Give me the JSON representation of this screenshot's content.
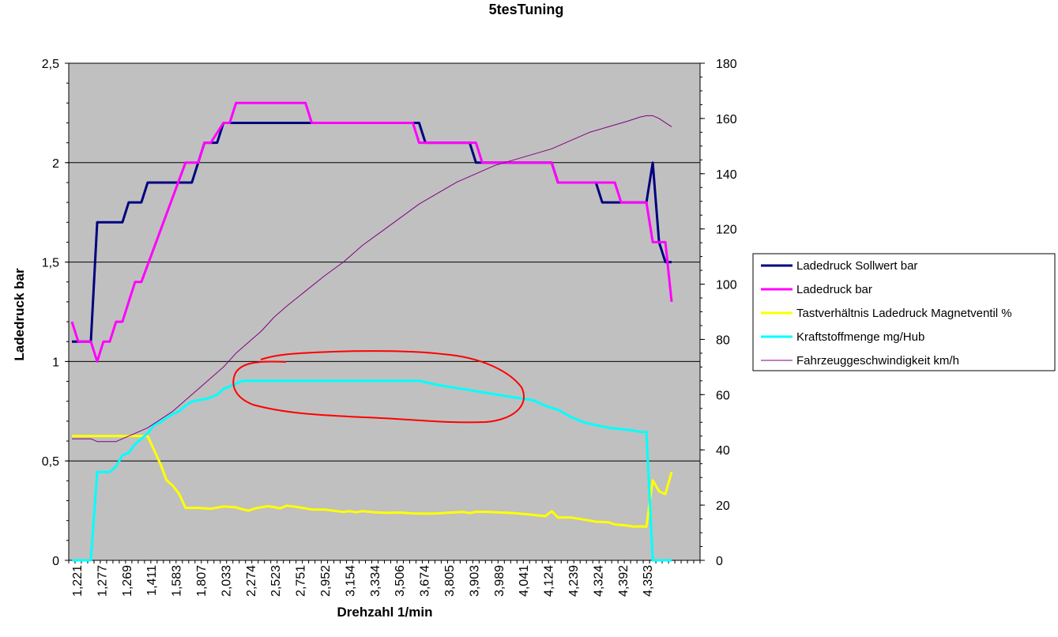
{
  "chart_data": {
    "type": "line",
    "title": "5tesTuning",
    "xlabel": "Drehzahl 1/min",
    "ylabel": "Ladedruck bar",
    "y2label": "",
    "ylim": [
      0,
      2.5
    ],
    "y2lim": [
      0,
      180
    ],
    "yticks": [
      "0",
      "0,5",
      "1",
      "1,5",
      "2",
      "2,5"
    ],
    "y2ticks": [
      "0",
      "20",
      "40",
      "60",
      "80",
      "100",
      "120",
      "140",
      "160",
      "180"
    ],
    "x_tick_labels": [
      "1,221",
      "1,277",
      "1,269",
      "1,411",
      "1,583",
      "1,807",
      "2,033",
      "2,274",
      "2,523",
      "2,751",
      "2,952",
      "3,154",
      "3,334",
      "3,506",
      "3,674",
      "3,805",
      "3,903",
      "3,989",
      "4,041",
      "4,124",
      "4,239",
      "4,324",
      "4,392",
      "4,353"
    ],
    "n_points": 100,
    "grid": "horizontal",
    "background": "#c0c0c0",
    "legend_position": "right",
    "annotation": "red hand-drawn ellipse",
    "series": [
      {
        "name": "Ladedruck Sollwert bar",
        "axis": "left",
        "color": "#000080",
        "points": [
          [
            0,
            1.1
          ],
          [
            3,
            1.1
          ],
          [
            4,
            1.7
          ],
          [
            8,
            1.7
          ],
          [
            9,
            1.8
          ],
          [
            11,
            1.8
          ],
          [
            12,
            1.9
          ],
          [
            19,
            1.9
          ],
          [
            21,
            2.1
          ],
          [
            23,
            2.1
          ],
          [
            24,
            2.2
          ],
          [
            38,
            2.2
          ],
          [
            39,
            2.2
          ],
          [
            55,
            2.2
          ],
          [
            56,
            2.1
          ],
          [
            63,
            2.1
          ],
          [
            64,
            2.0
          ],
          [
            67,
            2.0
          ],
          [
            68,
            2.0
          ],
          [
            76,
            2.0
          ],
          [
            77,
            1.9
          ],
          [
            83,
            1.9
          ],
          [
            84,
            1.8
          ],
          [
            88,
            1.8
          ],
          [
            91,
            1.8
          ],
          [
            92,
            2.0
          ],
          [
            93,
            1.6
          ],
          [
            94,
            1.5
          ],
          [
            95,
            1.5
          ]
        ]
      },
      {
        "name": "Ladedruck bar",
        "axis": "left",
        "color": "#ff00ff",
        "points": [
          [
            0,
            1.2
          ],
          [
            1,
            1.1
          ],
          [
            3,
            1.1
          ],
          [
            4,
            1.0
          ],
          [
            5,
            1.1
          ],
          [
            6,
            1.1
          ],
          [
            7,
            1.2
          ],
          [
            8,
            1.2
          ],
          [
            10,
            1.4
          ],
          [
            11,
            1.4
          ],
          [
            18,
            2.0
          ],
          [
            20,
            2.0
          ],
          [
            21,
            2.1
          ],
          [
            22,
            2.1
          ],
          [
            24,
            2.2
          ],
          [
            25,
            2.2
          ],
          [
            26,
            2.3
          ],
          [
            37,
            2.3
          ],
          [
            38,
            2.2
          ],
          [
            54,
            2.2
          ],
          [
            55,
            2.1
          ],
          [
            64,
            2.1
          ],
          [
            65,
            2.0
          ],
          [
            76,
            2.0
          ],
          [
            77,
            1.9
          ],
          [
            86,
            1.9
          ],
          [
            87,
            1.8
          ],
          [
            91,
            1.8
          ],
          [
            92,
            1.6
          ],
          [
            94,
            1.6
          ],
          [
            95,
            1.3
          ]
        ]
      },
      {
        "name": "Tastverhältnis Ladedruck Magnetventil %",
        "axis": "right",
        "color": "#ffff00",
        "points": [
          [
            0,
            45
          ],
          [
            11,
            45
          ],
          [
            12,
            45
          ],
          [
            13,
            40
          ],
          [
            14,
            35
          ],
          [
            15,
            29
          ],
          [
            16,
            27
          ],
          [
            17,
            24
          ],
          [
            18,
            19
          ],
          [
            20,
            19
          ],
          [
            22,
            18.7
          ],
          [
            24,
            19.5
          ],
          [
            26,
            19.2
          ],
          [
            27,
            18.5
          ],
          [
            28,
            18
          ],
          [
            29,
            18.8
          ],
          [
            30,
            19.2
          ],
          [
            31,
            19.6
          ],
          [
            32,
            19.3
          ],
          [
            33,
            18.8
          ],
          [
            34,
            19.8
          ],
          [
            35,
            19.5
          ],
          [
            36,
            19.2
          ],
          [
            37,
            18.8
          ],
          [
            38,
            18.4
          ],
          [
            40,
            18.4
          ],
          [
            42,
            17.8
          ],
          [
            43,
            17.5
          ],
          [
            44,
            17.8
          ],
          [
            45,
            17.4
          ],
          [
            46,
            17.8
          ],
          [
            48,
            17.4
          ],
          [
            50,
            17.2
          ],
          [
            52,
            17.3
          ],
          [
            54,
            17
          ],
          [
            56,
            16.9
          ],
          [
            58,
            17
          ],
          [
            60,
            17.3
          ],
          [
            62,
            17.5
          ],
          [
            63,
            17.1
          ],
          [
            64,
            17.6
          ],
          [
            66,
            17.5
          ],
          [
            68,
            17.3
          ],
          [
            70,
            17.1
          ],
          [
            72,
            16.7
          ],
          [
            74,
            16.2
          ],
          [
            75,
            16
          ],
          [
            76,
            17.8
          ],
          [
            77,
            15.5
          ],
          [
            79,
            15.5
          ],
          [
            81,
            14.8
          ],
          [
            83,
            14
          ],
          [
            85,
            13.8
          ],
          [
            86,
            13
          ],
          [
            88,
            12.6
          ],
          [
            89,
            12.2
          ],
          [
            90,
            12.3
          ],
          [
            91,
            12.2
          ],
          [
            92,
            29
          ],
          [
            93,
            25
          ],
          [
            94,
            24
          ],
          [
            95,
            32
          ]
        ]
      },
      {
        "name": "Kraftstoffmenge mg/Hub",
        "axis": "right",
        "color": "#00ffff",
        "points": [
          [
            0,
            0
          ],
          [
            3,
            0
          ],
          [
            4,
            32
          ],
          [
            6,
            32
          ],
          [
            7,
            34
          ],
          [
            8,
            38
          ],
          [
            9,
            39
          ],
          [
            10,
            42
          ],
          [
            11,
            44
          ],
          [
            12,
            46
          ],
          [
            13,
            49
          ],
          [
            14,
            50
          ],
          [
            15,
            51.5
          ],
          [
            16,
            53
          ],
          [
            17,
            54
          ],
          [
            18,
            56
          ],
          [
            19,
            57.5
          ],
          [
            20,
            58
          ],
          [
            21,
            58.3
          ],
          [
            22,
            59
          ],
          [
            23,
            60
          ],
          [
            24,
            62
          ],
          [
            25,
            63
          ],
          [
            26,
            64
          ],
          [
            27,
            65
          ],
          [
            55,
            65
          ],
          [
            58,
            63.5
          ],
          [
            62,
            62
          ],
          [
            66,
            60.5
          ],
          [
            70,
            59
          ],
          [
            73,
            58
          ],
          [
            75,
            56
          ],
          [
            77,
            54.5
          ],
          [
            79,
            52
          ],
          [
            81,
            50
          ],
          [
            83,
            49
          ],
          [
            85,
            48
          ],
          [
            87,
            47.5
          ],
          [
            89,
            47
          ],
          [
            90,
            46.5
          ],
          [
            91,
            46.5
          ],
          [
            92,
            0
          ],
          [
            95,
            0
          ]
        ]
      },
      {
        "name": "Fahrzeuggeschwindigkeit km/h",
        "axis": "right",
        "color": "#800080",
        "points": [
          [
            0,
            44
          ],
          [
            3,
            44
          ],
          [
            4,
            43
          ],
          [
            7,
            43
          ],
          [
            10,
            46
          ],
          [
            12,
            48
          ],
          [
            14,
            51
          ],
          [
            16,
            54
          ],
          [
            18,
            58
          ],
          [
            21,
            64
          ],
          [
            24,
            70
          ],
          [
            26,
            75
          ],
          [
            28,
            79
          ],
          [
            30,
            83
          ],
          [
            32,
            88
          ],
          [
            34,
            92
          ],
          [
            37,
            97.5
          ],
          [
            40,
            103
          ],
          [
            43,
            108
          ],
          [
            46,
            114
          ],
          [
            49,
            119
          ],
          [
            52,
            124
          ],
          [
            55,
            129
          ],
          [
            58,
            133
          ],
          [
            61,
            137
          ],
          [
            64,
            140
          ],
          [
            67,
            143
          ],
          [
            70,
            145
          ],
          [
            73,
            147
          ],
          [
            76,
            149
          ],
          [
            79,
            152
          ],
          [
            82,
            155
          ],
          [
            85,
            157
          ],
          [
            88,
            159
          ],
          [
            90,
            160.5
          ],
          [
            91,
            161
          ],
          [
            92,
            161
          ],
          [
            93,
            160
          ],
          [
            95,
            157
          ]
        ]
      }
    ]
  }
}
